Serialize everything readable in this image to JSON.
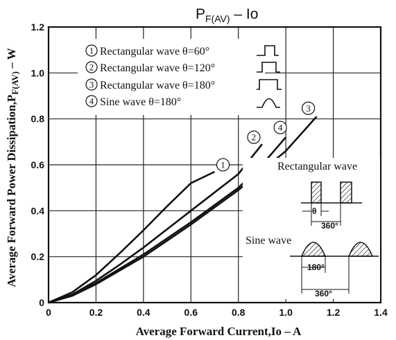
{
  "chart_data": {
    "type": "line",
    "title": "PF(AV) – Io",
    "title_main": "P",
    "title_sub": "F(AV)",
    "title_rest": "  –  Io",
    "xlabel": "Average Forward Current,Io – A",
    "ylabel": "Average Forward Power Dissipation,P",
    "ylabel_sub": "F(AV)",
    "ylabel_unit": " – W",
    "xlim": [
      0,
      1.4
    ],
    "ylim": [
      0,
      1.2
    ],
    "xticks": [
      "0",
      "0.2",
      "0.4",
      "0.6",
      "0.8",
      "1.0",
      "1.2",
      "1.4"
    ],
    "yticks": [
      "0",
      "0.2",
      "0.4",
      "0.6",
      "0.8",
      "1.0",
      "1.2"
    ],
    "grid": true,
    "legend": [
      {
        "num": "1",
        "text": "Rectangular wave θ=60°"
      },
      {
        "num": "2",
        "text": "Rectangular wave θ=120°"
      },
      {
        "num": "3",
        "text": "Rectangular wave θ=180°"
      },
      {
        "num": "4",
        "text": "Sine wave θ=180°"
      }
    ],
    "series": [
      {
        "id": "1",
        "x": [
          0,
          0.1,
          0.2,
          0.3,
          0.4,
          0.5,
          0.6,
          0.7
        ],
        "y": [
          0,
          0.045,
          0.12,
          0.215,
          0.315,
          0.42,
          0.52,
          0.57
        ]
      },
      {
        "id": "2",
        "x": [
          0,
          0.1,
          0.2,
          0.3,
          0.4,
          0.5,
          0.6,
          0.7,
          0.8,
          0.9
        ],
        "y": [
          0,
          0.035,
          0.095,
          0.165,
          0.24,
          0.32,
          0.4,
          0.48,
          0.56,
          0.69
        ]
      },
      {
        "id": "3",
        "x": [
          0,
          0.1,
          0.2,
          0.4,
          0.6,
          0.8,
          1.0,
          1.13
        ],
        "y": [
          0,
          0.03,
          0.08,
          0.2,
          0.34,
          0.49,
          0.66,
          0.81
        ]
      },
      {
        "id": "4",
        "x": [
          0,
          0.1,
          0.2,
          0.4,
          0.6,
          0.8,
          0.9,
          1.0
        ],
        "y": [
          0,
          0.032,
          0.085,
          0.21,
          0.35,
          0.5,
          0.6,
          0.72
        ]
      }
    ],
    "inset": {
      "rect_label": "Rectangular wave",
      "sine_label": "Sine wave",
      "theta": "θ",
      "deg360": "360°",
      "deg180": "180°",
      "deg360b": "360°"
    }
  }
}
